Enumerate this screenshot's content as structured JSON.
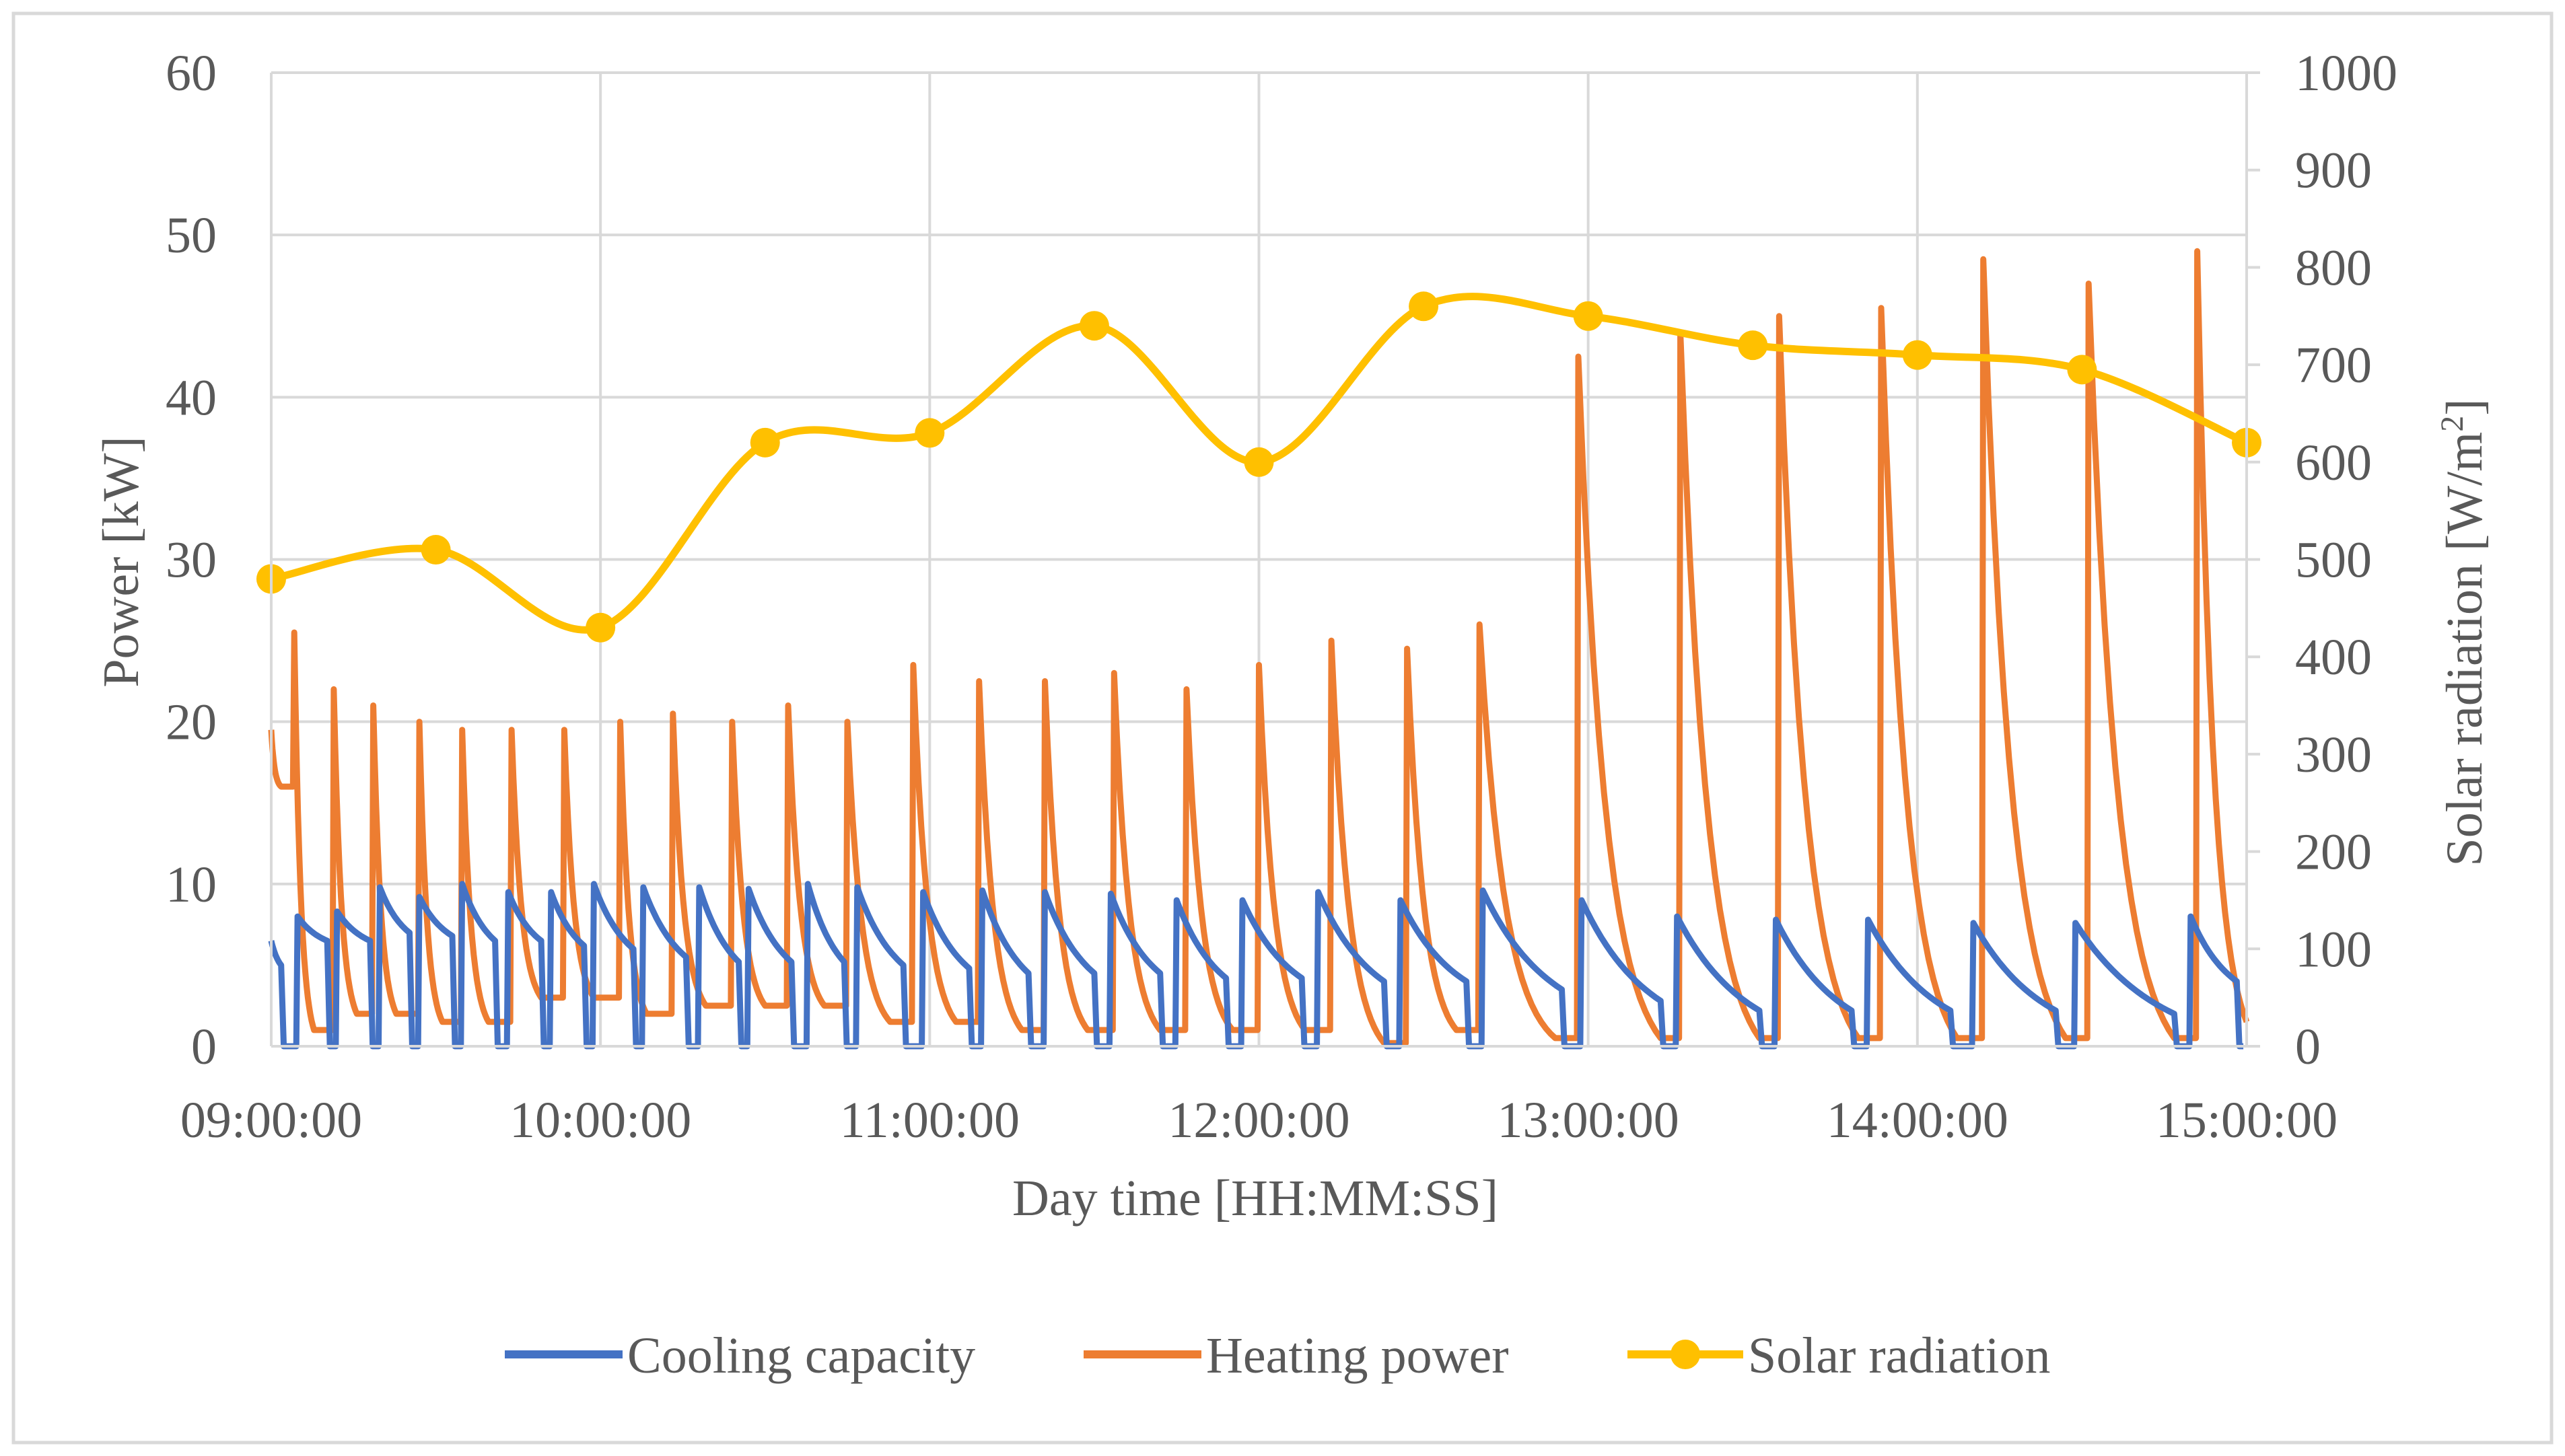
{
  "chart_data": {
    "type": "line",
    "title": "",
    "xlabel": "Day time [HH:MM:SS]",
    "ylabel_left": "Power [kW]",
    "ylabel_right": "Solar radiation [W/m",
    "ylabel_right_sup": "2",
    "ylabel_right_close": "]",
    "x_unit": "hours",
    "xlim": [
      9,
      15
    ],
    "ylim_left": [
      0,
      60
    ],
    "ylim_right": [
      0,
      1000
    ],
    "x_ticks": [
      9,
      10,
      11,
      12,
      13,
      14,
      15
    ],
    "x_tick_labels": [
      "09:00:00",
      "10:00:00",
      "11:00:00",
      "12:00:00",
      "13:00:00",
      "14:00:00",
      "15:00:00"
    ],
    "y_left_ticks": [
      0,
      10,
      20,
      30,
      40,
      50,
      60
    ],
    "y_left_tick_labels": [
      "0",
      "10",
      "20",
      "30",
      "40",
      "50",
      "60"
    ],
    "y_right_ticks": [
      0,
      100,
      200,
      300,
      400,
      500,
      600,
      700,
      800,
      900,
      1000
    ],
    "y_right_tick_labels": [
      "0",
      "100",
      "200",
      "300",
      "400",
      "500",
      "600",
      "700",
      "800",
      "900",
      "1000"
    ],
    "grid": true,
    "legend_position": "bottom",
    "colors": {
      "cooling": "#4472C4",
      "heating": "#ED7D31",
      "solar": "#FFC000",
      "grid": "#D9D9D9",
      "text": "#595959"
    },
    "series": [
      {
        "name": "Cooling capacity",
        "axis": "left",
        "label": "Cooling capacity",
        "peaks": [
          [
            9.0,
            6.5
          ],
          [
            9.08,
            8.0
          ],
          [
            9.2,
            8.3
          ],
          [
            9.33,
            9.8
          ],
          [
            9.45,
            9.2
          ],
          [
            9.58,
            10.0
          ],
          [
            9.72,
            9.5
          ],
          [
            9.85,
            9.5
          ],
          [
            9.98,
            10.0
          ],
          [
            10.13,
            9.8
          ],
          [
            10.3,
            9.8
          ],
          [
            10.45,
            9.7
          ],
          [
            10.63,
            10.0
          ],
          [
            10.78,
            9.8
          ],
          [
            10.98,
            9.5
          ],
          [
            11.16,
            9.6
          ],
          [
            11.35,
            9.5
          ],
          [
            11.55,
            9.4
          ],
          [
            11.75,
            9.0
          ],
          [
            11.95,
            9.0
          ],
          [
            12.18,
            9.5
          ],
          [
            12.43,
            9.0
          ],
          [
            12.68,
            9.6
          ],
          [
            12.98,
            9.0
          ],
          [
            13.27,
            8.0
          ],
          [
            13.57,
            7.8
          ],
          [
            13.85,
            7.8
          ],
          [
            14.17,
            7.6
          ],
          [
            14.48,
            7.6
          ],
          [
            14.83,
            8.0
          ]
        ],
        "valleys": [
          [
            9.03,
            5.0
          ],
          [
            9.17,
            6.5
          ],
          [
            9.3,
            6.5
          ],
          [
            9.42,
            7.0
          ],
          [
            9.55,
            6.8
          ],
          [
            9.68,
            6.5
          ],
          [
            9.82,
            6.5
          ],
          [
            9.95,
            6.2
          ],
          [
            10.1,
            6.0
          ],
          [
            10.26,
            5.5
          ],
          [
            10.42,
            5.2
          ],
          [
            10.58,
            5.2
          ],
          [
            10.74,
            5.2
          ],
          [
            10.92,
            5.0
          ],
          [
            11.12,
            4.8
          ],
          [
            11.3,
            4.5
          ],
          [
            11.5,
            4.5
          ],
          [
            11.7,
            4.5
          ],
          [
            11.9,
            4.2
          ],
          [
            12.13,
            4.2
          ],
          [
            12.38,
            4.0
          ],
          [
            12.63,
            4.0
          ],
          [
            12.92,
            3.5
          ],
          [
            13.22,
            2.8
          ],
          [
            13.52,
            2.2
          ],
          [
            13.8,
            2.2
          ],
          [
            14.1,
            2.2
          ],
          [
            14.42,
            2.2
          ],
          [
            14.78,
            2.0
          ],
          [
            14.97,
            4.0
          ]
        ]
      },
      {
        "name": "Heating power",
        "axis": "left",
        "label": "Heating power",
        "peaks": [
          [
            9.0,
            19.5
          ],
          [
            9.07,
            25.5
          ],
          [
            9.19,
            22.0
          ],
          [
            9.31,
            21.0
          ],
          [
            9.45,
            20.0
          ],
          [
            9.58,
            19.5
          ],
          [
            9.73,
            19.5
          ],
          [
            9.89,
            19.5
          ],
          [
            10.06,
            20.0
          ],
          [
            10.22,
            20.5
          ],
          [
            10.4,
            20.0
          ],
          [
            10.57,
            21.0
          ],
          [
            10.75,
            20.0
          ],
          [
            10.95,
            23.5
          ],
          [
            11.15,
            22.5
          ],
          [
            11.35,
            22.5
          ],
          [
            11.56,
            23.0
          ],
          [
            11.78,
            22.0
          ],
          [
            12.0,
            23.5
          ],
          [
            12.22,
            25.0
          ],
          [
            12.45,
            24.5
          ],
          [
            12.67,
            26.0
          ],
          [
            12.97,
            42.5
          ],
          [
            13.28,
            44.0
          ],
          [
            13.58,
            45.0
          ],
          [
            13.89,
            45.5
          ],
          [
            14.2,
            48.5
          ],
          [
            14.52,
            47.0
          ],
          [
            14.85,
            49.0
          ]
        ],
        "valleys": [
          [
            9.03,
            16.0
          ],
          [
            9.13,
            1.0
          ],
          [
            9.26,
            2.0
          ],
          [
            9.38,
            2.0
          ],
          [
            9.52,
            1.5
          ],
          [
            9.66,
            1.5
          ],
          [
            9.82,
            3.0
          ],
          [
            9.98,
            3.0
          ],
          [
            10.14,
            2.0
          ],
          [
            10.32,
            2.5
          ],
          [
            10.5,
            2.5
          ],
          [
            10.68,
            2.5
          ],
          [
            10.88,
            1.5
          ],
          [
            11.08,
            1.5
          ],
          [
            11.28,
            1.0
          ],
          [
            11.48,
            1.0
          ],
          [
            11.7,
            1.0
          ],
          [
            11.92,
            1.0
          ],
          [
            12.14,
            1.0
          ],
          [
            12.38,
            0.2
          ],
          [
            12.6,
            1.0
          ],
          [
            12.9,
            0.5
          ],
          [
            13.22,
            0.5
          ],
          [
            13.52,
            0.5
          ],
          [
            13.82,
            0.5
          ],
          [
            14.12,
            0.5
          ],
          [
            14.45,
            0.5
          ],
          [
            14.78,
            0.5
          ],
          [
            15.0,
            1.5
          ]
        ]
      },
      {
        "name": "Solar radiation",
        "axis": "right",
        "label": "Solar radiation",
        "x": [
          9.0,
          9.5,
          10.0,
          10.5,
          11.0,
          11.5,
          12.0,
          12.5,
          13.0,
          13.5,
          14.0,
          14.5,
          15.0
        ],
        "values": [
          480,
          510,
          430,
          620,
          630,
          740,
          600,
          760,
          750,
          720,
          710,
          695,
          620
        ]
      }
    ]
  }
}
